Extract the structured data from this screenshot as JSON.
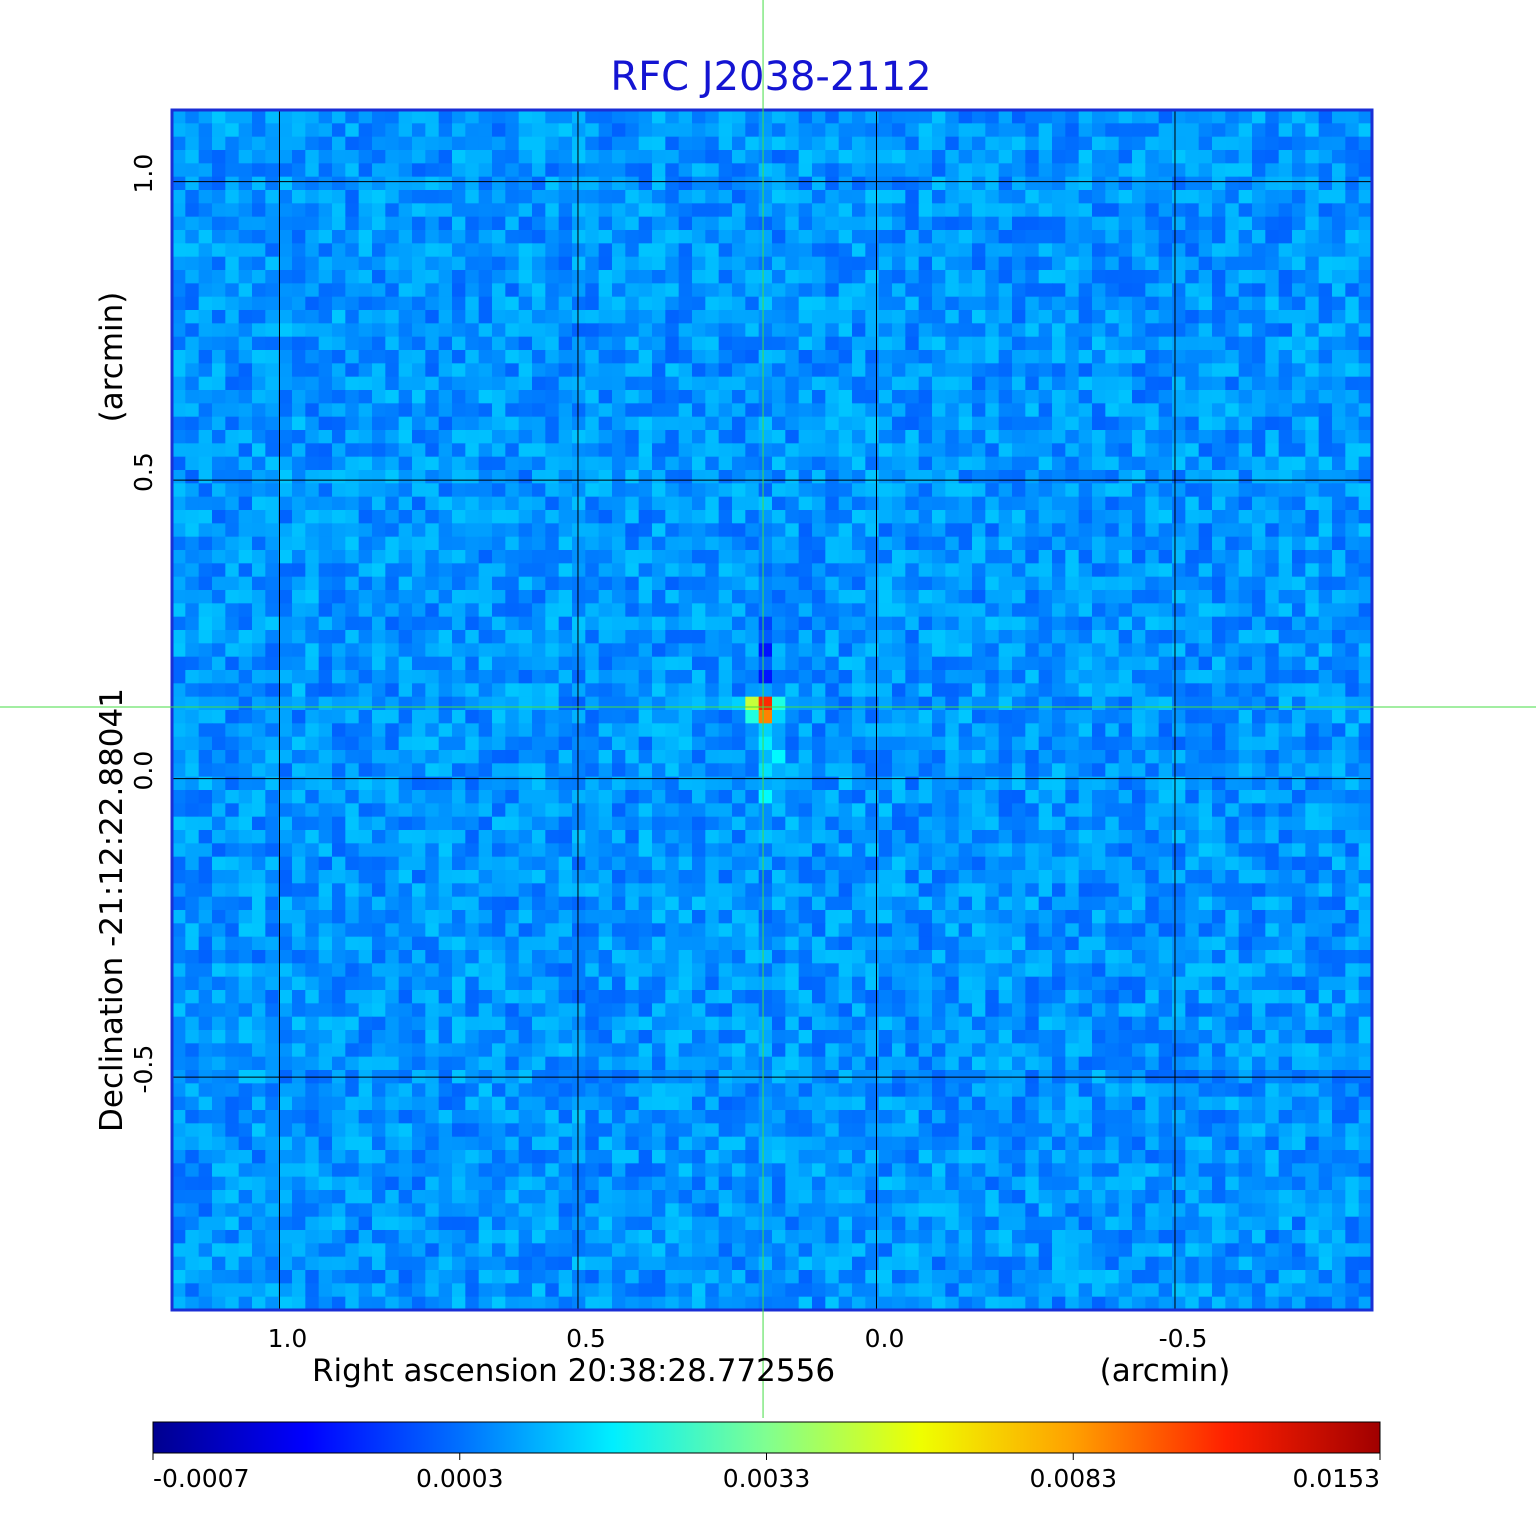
{
  "chart_data": {
    "type": "heatmap",
    "title": "RFC J2038-2112",
    "xlabel": "Right ascension  20:38:28.772556",
    "xunit": "(arcmin)",
    "ylabel": "Declination  -21:12:22.88041",
    "yunit": "(arcmin)",
    "xlim": [
      1.18,
      -0.83
    ],
    "ylim": [
      -0.89,
      1.12
    ],
    "x_ticks": [
      1.0,
      0.5,
      0.0,
      -0.5
    ],
    "x_tick_labels": [
      "1.0",
      "0.5",
      "0.0",
      "-0.5"
    ],
    "y_ticks": [
      1.0,
      0.5,
      0.0,
      -0.5
    ],
    "y_tick_labels": [
      "1.0",
      "0.5",
      "0.0",
      "-0.5"
    ],
    "grid": true,
    "crosshair": {
      "x": 0.19,
      "y": 0.12
    },
    "source_peak": {
      "x": 0.19,
      "y": 0.12,
      "value": 0.0153
    },
    "grid_cells": [
      90,
      90
    ],
    "colorbar": {
      "ticks": [
        "-0.0007",
        "0.0003",
        "0.0033",
        "0.0083",
        "0.0153"
      ],
      "colormap": "jet",
      "min": -0.0007,
      "max": 0.0153
    },
    "colors": {
      "title": "#1414d2",
      "frame": "#1a2fd6",
      "crosshair": "#44dd44",
      "gridline": "#000000"
    }
  }
}
